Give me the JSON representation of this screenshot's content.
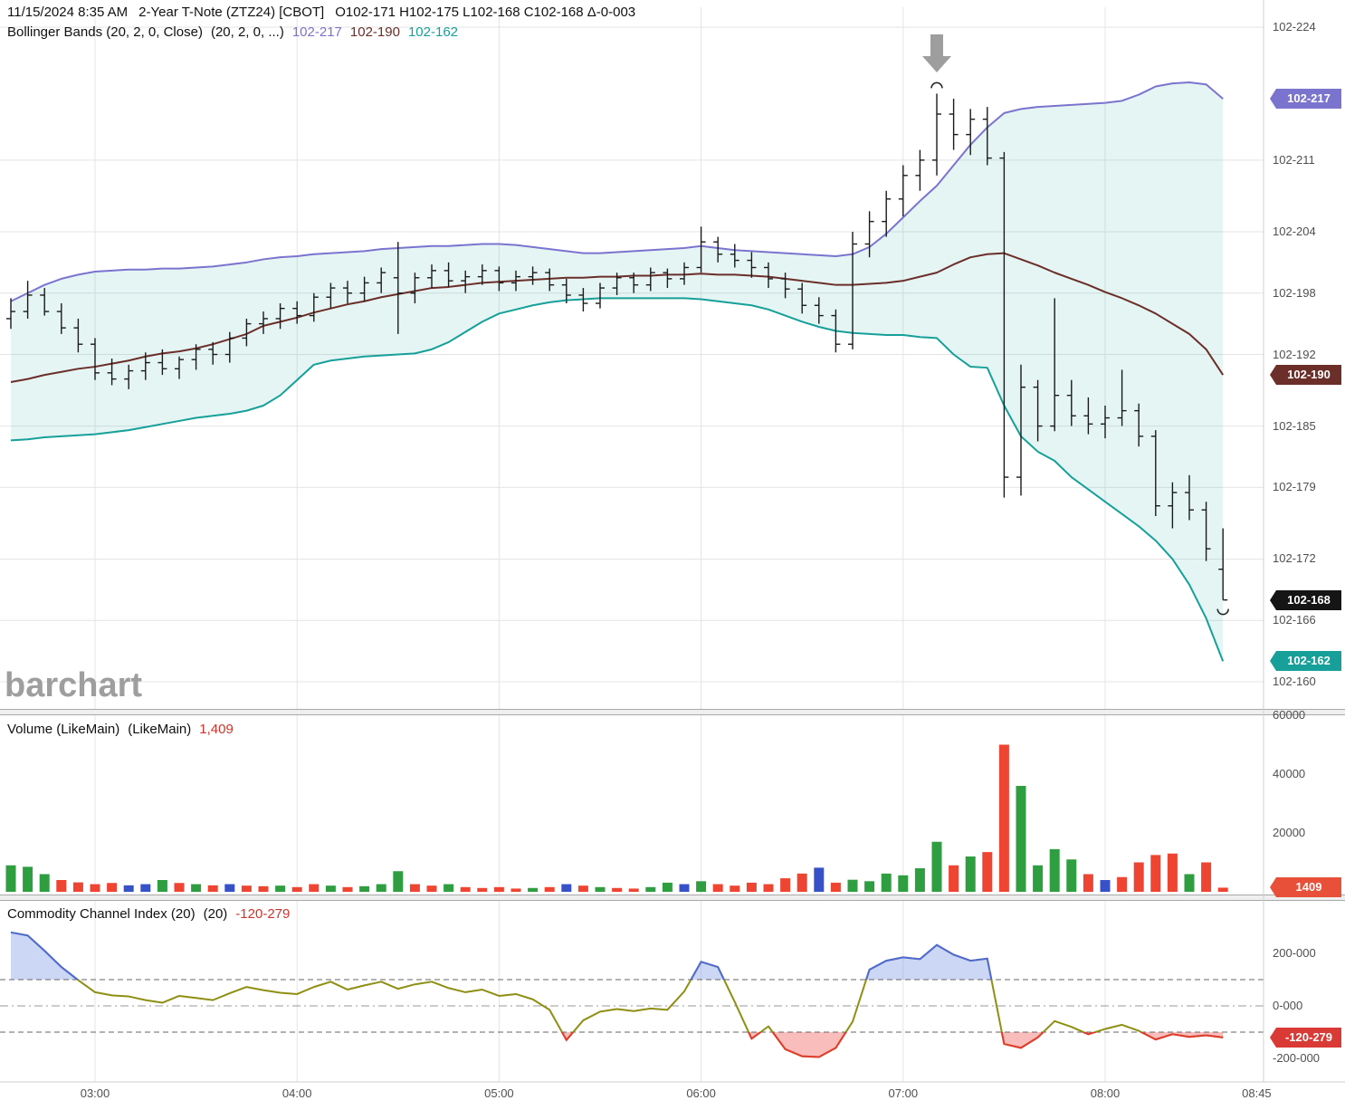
{
  "header": {
    "datetime": "11/15/2024 8:35 AM",
    "symbol": "2-Year T-Note (ZTZ24) [CBOT]",
    "ohlc": "O102-171 H102-175 L102-168 C102-168 Δ-0-003"
  },
  "legend": {
    "bollinger": {
      "label": "Bollinger Bands (20, 2, 0, Close)",
      "params": "(20, 2, 0, ...)",
      "upper": "102-217",
      "middle": "102-190",
      "lower": "102-162"
    },
    "volume": {
      "label": "Volume (LikeMain)",
      "params": "(LikeMain)",
      "value": "1,409"
    },
    "cci": {
      "label": "Commodity Channel Index (20)",
      "params": "(20)",
      "value": "-120-279"
    }
  },
  "watermark": "barchart",
  "colors": {
    "grid": "#e4e4e4",
    "axis_text": "#4f4f4f",
    "bar": "#1a1a1a",
    "bb_upper": "#7b74cf",
    "bb_middle": "#6b2e28",
    "bb_lower": "#16a099",
    "band_fill": "rgba(22,160,153,0.11)",
    "vol_up": "#2e9e41",
    "vol_down": "#ee4533",
    "vol_neutral": "#3752c8",
    "cci_line": "#8f8f13",
    "cci_above": "#4f6bd6",
    "cci_below": "#e23b30",
    "cci_fill_above": "rgba(110,140,230,0.35)",
    "cci_fill_below": "rgba(240,90,85,0.40)",
    "legend_value": "#d0342c",
    "separator": "#a8a8a8",
    "annotation_gray": "#9e9e9e"
  },
  "x_axis": {
    "labels": [
      {
        "text": "03:00",
        "i": 5
      },
      {
        "text": "04:00",
        "i": 17
      },
      {
        "text": "05:00",
        "i": 29
      },
      {
        "text": "06:00",
        "i": 41
      },
      {
        "text": "07:00",
        "i": 53
      },
      {
        "text": "08:00",
        "i": 65
      },
      {
        "text": "08:45",
        "i": 74,
        "grid": false
      }
    ]
  },
  "chart_data": [
    {
      "type": "ohlc",
      "name": "2-Year T-Note (ZTZ24) 5-minute bars, price = 102 + value/32",
      "start_time": "02:35",
      "interval_minutes": 5,
      "ylim": [
        16.0,
        22.4
      ],
      "y_ticks": [
        {
          "text": "102-224",
          "v": 22.4
        },
        {
          "text": "102-211",
          "v": 21.1
        },
        {
          "text": "102-204",
          "v": 20.4
        },
        {
          "text": "102-198",
          "v": 19.8
        },
        {
          "text": "102-192",
          "v": 19.2
        },
        {
          "text": "102-185",
          "v": 18.5
        },
        {
          "text": "102-179",
          "v": 17.9
        },
        {
          "text": "102-172",
          "v": 17.2
        },
        {
          "text": "102-166",
          "v": 16.6
        },
        {
          "text": "102-160",
          "v": 16.0
        }
      ],
      "badges": [
        {
          "text": "102-217",
          "v": 21.7,
          "color": "#7b74cf",
          "name": "bollinger-upper-badge"
        },
        {
          "text": "102-190",
          "v": 19.0,
          "color": "#6b2e28",
          "name": "bollinger-middle-badge"
        },
        {
          "text": "102-168",
          "v": 16.8,
          "color": "#151515",
          "name": "last-price-badge"
        },
        {
          "text": "102-162",
          "v": 16.2,
          "color": "#16a099",
          "name": "bollinger-lower-badge"
        }
      ],
      "annotations": {
        "arrow_down_bar": 55,
        "high_marker_bar": 55,
        "low_marker_bar": 72
      },
      "bars": [
        [
          19.55,
          19.75,
          19.45,
          19.62
        ],
        [
          19.62,
          19.92,
          19.55,
          19.78
        ],
        [
          19.78,
          19.85,
          19.58,
          19.62
        ],
        [
          19.62,
          19.7,
          19.4,
          19.46
        ],
        [
          19.46,
          19.55,
          19.22,
          19.3
        ],
        [
          19.3,
          19.36,
          18.95,
          19.02
        ],
        [
          19.02,
          19.16,
          18.9,
          18.96
        ],
        [
          18.96,
          19.1,
          18.86,
          19.04
        ],
        [
          19.04,
          19.22,
          18.95,
          19.12
        ],
        [
          19.12,
          19.25,
          19.0,
          19.06
        ],
        [
          19.06,
          19.18,
          18.96,
          19.15
        ],
        [
          19.15,
          19.3,
          19.05,
          19.25
        ],
        [
          19.25,
          19.32,
          19.1,
          19.2
        ],
        [
          19.2,
          19.42,
          19.12,
          19.36
        ],
        [
          19.36,
          19.55,
          19.28,
          19.5
        ],
        [
          19.5,
          19.62,
          19.4,
          19.55
        ],
        [
          19.55,
          19.7,
          19.45,
          19.65
        ],
        [
          19.65,
          19.72,
          19.5,
          19.58
        ],
        [
          19.58,
          19.8,
          19.52,
          19.76
        ],
        [
          19.76,
          19.9,
          19.65,
          19.85
        ],
        [
          19.85,
          19.92,
          19.7,
          19.8
        ],
        [
          19.8,
          19.96,
          19.72,
          19.9
        ],
        [
          19.9,
          20.05,
          19.8,
          20.0
        ],
        [
          19.95,
          20.3,
          19.4,
          19.8
        ],
        [
          19.8,
          20.0,
          19.7,
          19.95
        ],
        [
          19.95,
          20.08,
          19.85,
          20.02
        ],
        [
          20.02,
          20.1,
          19.86,
          19.92
        ],
        [
          19.92,
          20.02,
          19.8,
          19.96
        ],
        [
          19.96,
          20.08,
          19.88,
          20.02
        ],
        [
          20.02,
          20.06,
          19.82,
          19.9
        ],
        [
          19.9,
          20.02,
          19.82,
          19.96
        ],
        [
          19.96,
          20.06,
          19.88,
          20.0
        ],
        [
          20.0,
          20.04,
          19.82,
          19.88
        ],
        [
          19.88,
          19.94,
          19.7,
          19.78
        ],
        [
          19.78,
          19.85,
          19.62,
          19.7
        ],
        [
          19.7,
          19.9,
          19.65,
          19.85
        ],
        [
          19.85,
          20.0,
          19.78,
          19.95
        ],
        [
          19.95,
          20.0,
          19.8,
          19.88
        ],
        [
          19.88,
          20.05,
          19.82,
          20.0
        ],
        [
          20.0,
          20.04,
          19.85,
          19.94
        ],
        [
          19.94,
          20.1,
          19.88,
          20.05
        ],
        [
          20.05,
          20.45,
          20.0,
          20.3
        ],
        [
          20.3,
          20.35,
          20.1,
          20.18
        ],
        [
          20.18,
          20.28,
          20.05,
          20.12
        ],
        [
          20.12,
          20.2,
          19.95,
          20.05
        ],
        [
          20.05,
          20.1,
          19.85,
          19.94
        ],
        [
          19.94,
          20.0,
          19.75,
          19.84
        ],
        [
          19.84,
          19.9,
          19.6,
          19.68
        ],
        [
          19.68,
          19.76,
          19.5,
          19.58
        ],
        [
          19.58,
          19.64,
          19.22,
          19.3
        ],
        [
          19.3,
          20.4,
          19.25,
          20.28
        ],
        [
          20.28,
          20.6,
          20.15,
          20.5
        ],
        [
          20.5,
          20.8,
          20.35,
          20.72
        ],
        [
          20.72,
          21.05,
          20.55,
          20.95
        ],
        [
          20.95,
          21.2,
          20.8,
          21.1
        ],
        [
          21.1,
          21.75,
          20.95,
          21.55
        ],
        [
          21.55,
          21.7,
          21.2,
          21.35
        ],
        [
          21.35,
          21.6,
          21.15,
          21.5
        ],
        [
          21.5,
          21.62,
          21.05,
          21.12
        ],
        [
          21.12,
          21.18,
          17.8,
          18.0
        ],
        [
          18.0,
          19.1,
          17.82,
          18.88
        ],
        [
          18.88,
          18.95,
          18.35,
          18.5
        ],
        [
          18.5,
          19.75,
          18.45,
          18.8
        ],
        [
          18.8,
          18.95,
          18.5,
          18.6
        ],
        [
          18.6,
          18.78,
          18.42,
          18.52
        ],
        [
          18.52,
          18.7,
          18.38,
          18.58
        ],
        [
          18.58,
          19.05,
          18.5,
          18.65
        ],
        [
          18.65,
          18.72,
          18.3,
          18.4
        ],
        [
          18.4,
          18.46,
          17.62,
          17.72
        ],
        [
          17.72,
          17.95,
          17.5,
          17.85
        ],
        [
          17.85,
          18.02,
          17.58,
          17.68
        ],
        [
          17.68,
          17.76,
          17.18,
          17.3
        ],
        [
          17.1,
          17.5,
          16.8,
          16.8
        ]
      ],
      "bollinger_upper": [
        19.72,
        19.8,
        19.88,
        19.94,
        19.98,
        20.01,
        20.02,
        20.03,
        20.03,
        20.04,
        20.04,
        20.05,
        20.06,
        20.08,
        20.1,
        20.13,
        20.15,
        20.16,
        20.18,
        20.19,
        20.2,
        20.21,
        20.23,
        20.24,
        20.25,
        20.26,
        20.26,
        20.27,
        20.28,
        20.28,
        20.27,
        20.25,
        20.23,
        20.21,
        20.19,
        20.19,
        20.2,
        20.21,
        20.22,
        20.23,
        20.24,
        20.26,
        20.24,
        20.22,
        20.21,
        20.2,
        20.19,
        20.18,
        20.17,
        20.16,
        20.18,
        20.25,
        20.38,
        20.54,
        20.7,
        20.85,
        21.05,
        21.25,
        21.42,
        21.56,
        21.6,
        21.62,
        21.63,
        21.64,
        21.65,
        21.66,
        21.68,
        21.74,
        21.82,
        21.85,
        21.86,
        21.84,
        21.7
      ],
      "bollinger_middle": [
        18.93,
        18.96,
        19.0,
        19.03,
        19.06,
        19.08,
        19.11,
        19.14,
        19.18,
        19.21,
        19.23,
        19.26,
        19.3,
        19.35,
        19.4,
        19.48,
        19.52,
        19.56,
        19.61,
        19.65,
        19.69,
        19.72,
        19.76,
        19.79,
        19.82,
        19.85,
        19.86,
        19.88,
        19.9,
        19.91,
        19.92,
        19.93,
        19.94,
        19.95,
        19.95,
        19.96,
        19.96,
        19.97,
        19.97,
        19.98,
        19.98,
        19.99,
        19.98,
        19.98,
        19.97,
        19.96,
        19.94,
        19.92,
        19.9,
        19.88,
        19.88,
        19.89,
        19.9,
        19.92,
        19.96,
        20.0,
        20.08,
        20.15,
        20.18,
        20.19,
        20.13,
        20.07,
        20.0,
        19.94,
        19.88,
        19.81,
        19.75,
        19.68,
        19.6,
        19.5,
        19.4,
        19.25,
        19.0
      ],
      "bollinger_lower": [
        18.36,
        18.37,
        18.39,
        18.4,
        18.41,
        18.42,
        18.44,
        18.46,
        18.49,
        18.52,
        18.55,
        18.58,
        18.6,
        18.62,
        18.65,
        18.7,
        18.8,
        18.95,
        19.1,
        19.14,
        19.16,
        19.18,
        19.19,
        19.2,
        19.21,
        19.25,
        19.32,
        19.42,
        19.52,
        19.6,
        19.64,
        19.68,
        19.71,
        19.73,
        19.74,
        19.75,
        19.75,
        19.75,
        19.75,
        19.75,
        19.75,
        19.74,
        19.72,
        19.7,
        19.68,
        19.64,
        19.58,
        19.52,
        19.47,
        19.43,
        19.41,
        19.4,
        19.39,
        19.39,
        19.37,
        19.36,
        19.2,
        19.08,
        19.07,
        18.7,
        18.4,
        18.25,
        18.16,
        18.0,
        17.88,
        17.76,
        17.64,
        17.52,
        17.38,
        17.2,
        16.95,
        16.62,
        16.2
      ]
    },
    {
      "type": "bar",
      "name": "Volume",
      "y_ticks": [
        {
          "text": "20000",
          "v": 20000
        },
        {
          "text": "40000",
          "v": 40000
        },
        {
          "text": "60000",
          "v": 60000
        }
      ],
      "badge": {
        "text": "1409",
        "v": 1409,
        "color": "#e8503a",
        "name": "volume-badge"
      },
      "values": [
        9000,
        8500,
        6000,
        4000,
        3200,
        2600,
        3000,
        2200,
        2600,
        4000,
        3000,
        2600,
        2200,
        2600,
        2100,
        1900,
        2100,
        1600,
        2600,
        2100,
        1600,
        1900,
        2600,
        7000,
        2600,
        2100,
        2600,
        1600,
        1300,
        1600,
        1100,
        1300,
        1600,
        2600,
        2100,
        1600,
        1300,
        1100,
        1600,
        3100,
        2600,
        3600,
        2600,
        2100,
        3100,
        2600,
        4600,
        6200,
        8200,
        3100,
        4100,
        3600,
        6200,
        5600,
        8000,
        17000,
        9000,
        12000,
        13500,
        50000,
        36000,
        9000,
        14500,
        11000,
        6000,
        4000,
        5000,
        10000,
        12500,
        13000,
        6000,
        10000,
        1409
      ],
      "colors": [
        "g",
        "g",
        "g",
        "r",
        "r",
        "r",
        "r",
        "b",
        "b",
        "g",
        "r",
        "g",
        "r",
        "b",
        "r",
        "r",
        "g",
        "r",
        "r",
        "g",
        "r",
        "g",
        "g",
        "g",
        "r",
        "r",
        "g",
        "r",
        "r",
        "r",
        "r",
        "g",
        "r",
        "b",
        "r",
        "g",
        "r",
        "r",
        "g",
        "g",
        "b",
        "g",
        "r",
        "r",
        "r",
        "r",
        "r",
        "r",
        "b",
        "r",
        "g",
        "g",
        "g",
        "g",
        "g",
        "g",
        "r",
        "g",
        "r",
        "r",
        "g",
        "g",
        "g",
        "g",
        "r",
        "b",
        "r",
        "r",
        "r",
        "r",
        "g",
        "r",
        "r"
      ]
    },
    {
      "type": "line",
      "name": "Commodity Channel Index (20)",
      "levels": {
        "upper": 100,
        "zero": 0,
        "lower": -100
      },
      "y_ticks": [
        {
          "text": "200-000",
          "v": 200
        },
        {
          "text": "0-000",
          "v": 0
        },
        {
          "text": "-200-000",
          "v": -200
        }
      ],
      "badge": {
        "text": "-120-279",
        "v": -120.279,
        "color": "#d93a36",
        "name": "cci-badge"
      },
      "values": [
        280,
        268,
        210,
        148,
        98,
        52,
        40,
        36,
        22,
        12,
        38,
        30,
        22,
        48,
        72,
        60,
        50,
        45,
        72,
        92,
        62,
        78,
        92,
        65,
        82,
        92,
        68,
        52,
        62,
        38,
        45,
        25,
        -15,
        -130,
        -55,
        -22,
        -12,
        -20,
        -10,
        -15,
        55,
        168,
        148,
        15,
        -125,
        -78,
        -165,
        -192,
        -195,
        -160,
        -60,
        138,
        172,
        185,
        178,
        232,
        195,
        172,
        180,
        -145,
        -160,
        -120,
        -58,
        -80,
        -108,
        -88,
        -72,
        -95,
        -128,
        -108,
        -118,
        -112,
        -120.279
      ]
    }
  ]
}
